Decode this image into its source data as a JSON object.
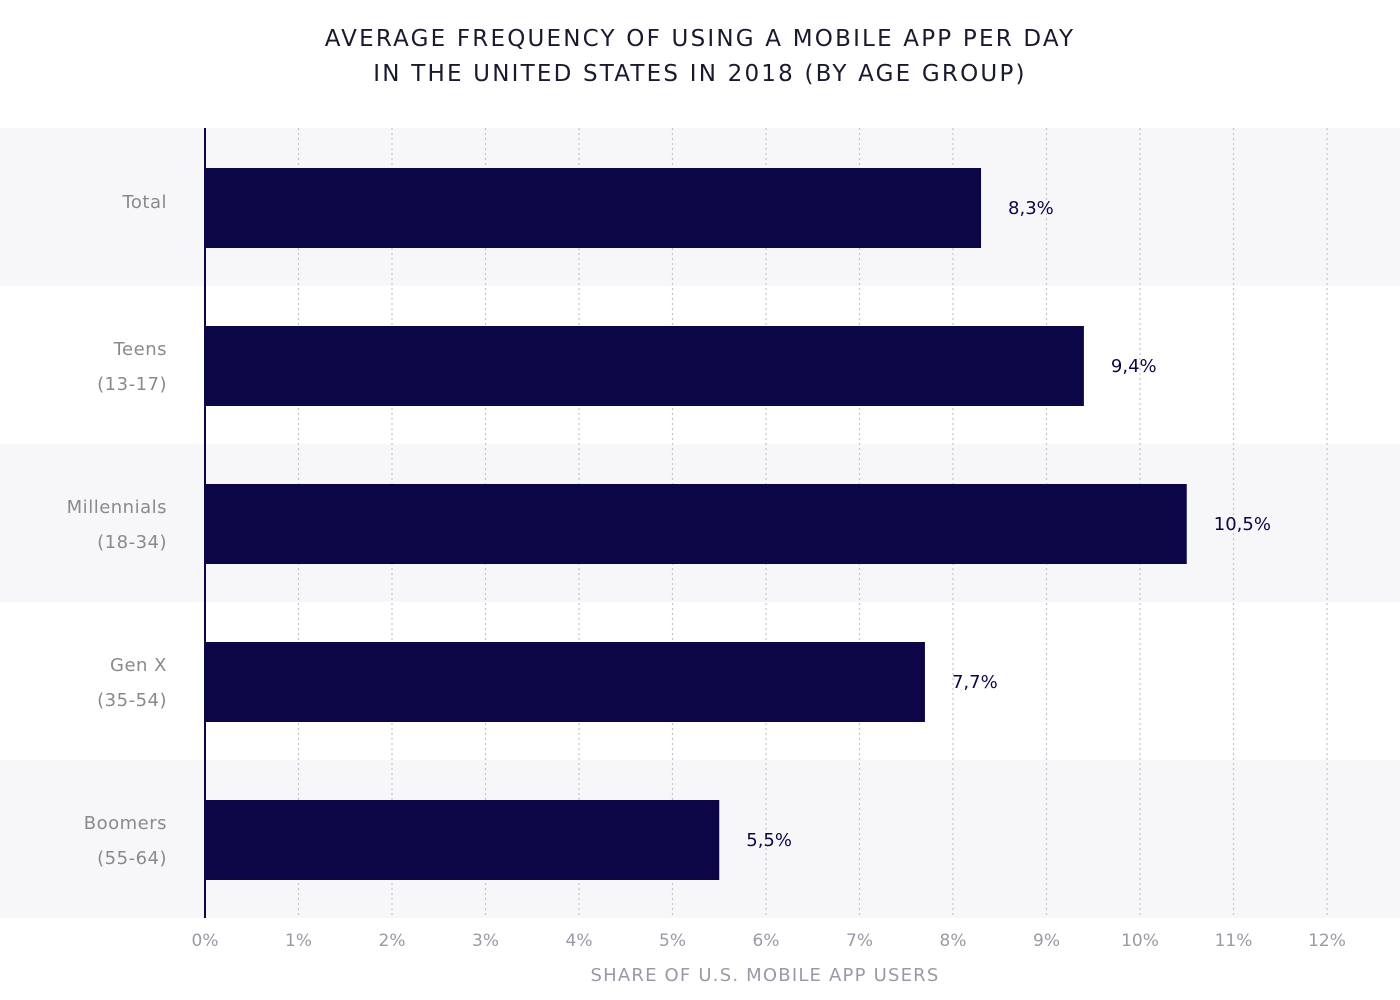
{
  "chart_data": {
    "type": "bar",
    "orientation": "horizontal",
    "title_lines": [
      "AVERAGE FREQUENCY OF USING A MOBILE APP PER DAY",
      "IN THE UNITED STATES IN 2018 (BY AGE GROUP)"
    ],
    "categories": [
      [
        "Total"
      ],
      [
        "Teens",
        "(13-17)"
      ],
      [
        "Millennials",
        "(18-34)"
      ],
      [
        "Gen X",
        "(35-54)"
      ],
      [
        "Boomers",
        "(55-64)"
      ]
    ],
    "values": [
      8.3,
      9.4,
      10.5,
      7.7,
      5.5
    ],
    "value_labels": [
      "8,3%",
      "9,4%",
      "10,5%",
      "7,7%",
      "5,5%"
    ],
    "xlim": [
      0,
      12
    ],
    "xticks": [
      0,
      1,
      2,
      3,
      4,
      5,
      6,
      7,
      8,
      9,
      10,
      11,
      12
    ],
    "xtick_labels": [
      "0%",
      "1%",
      "2%",
      "3%",
      "4%",
      "5%",
      "6%",
      "7%",
      "8%",
      "9%",
      "10%",
      "11%",
      "12%"
    ],
    "xlabel": "SHARE OF U.S. MOBILE APP USERS",
    "ylabel": "",
    "grid": "vertical dotted",
    "legend": "none",
    "colors": {
      "bar": "#0b0746",
      "band": "#f7f7fa",
      "axis": "#0b0746",
      "grid": "#c4c4cc",
      "category_text": "#8a8a8a",
      "value_text": "#0b0746",
      "tick_text": "#9a9aa6",
      "title_text": "#1a1a2e"
    }
  }
}
